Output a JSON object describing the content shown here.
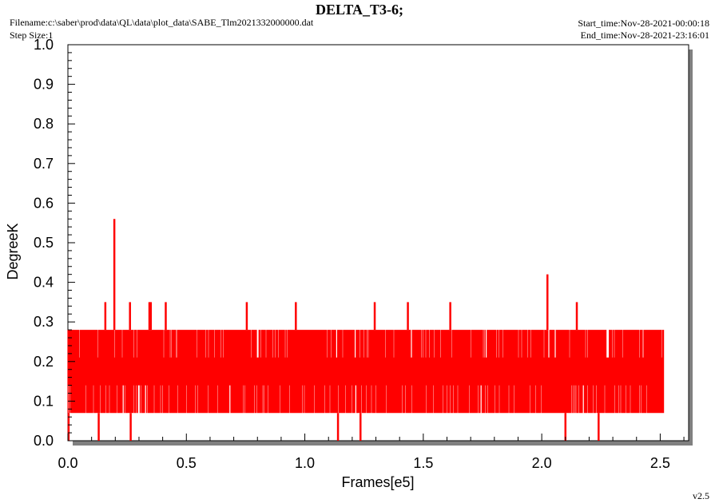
{
  "header": {
    "title": "DELTA_T3-6;",
    "filename": "Filename:c:\\saber\\prod\\data\\QL\\data\\plot_data\\SABE_Tlm2021332000000.dat",
    "step_size": "Step Size:1",
    "start_time": "Start_time:Nov-28-2021-00:00:18",
    "end_time": "End_time:Nov-28-2021-23:16:01",
    "version": "v2.5"
  },
  "colors": {
    "series": "#ff0000",
    "frame_shadow": "#808080",
    "background": "#ffffff"
  },
  "chart_data": {
    "type": "line",
    "title": "DELTA_T3-6;",
    "xlabel": "Frames[e5]",
    "ylabel": "DegreeK",
    "xlim": [
      0,
      2.62
    ],
    "ylim": [
      0,
      1.0
    ],
    "x_ticks": [
      "0.0",
      "0.5",
      "1.0",
      "1.5",
      "2.0",
      "2.5"
    ],
    "y_ticks": [
      "0.0",
      "0.1",
      "0.2",
      "0.3",
      "0.4",
      "0.5",
      "0.6",
      "0.7",
      "0.8",
      "0.9",
      "1.0"
    ],
    "grid": false,
    "series": [
      {
        "color": "#ff0000",
        "x_range": [
          0,
          2.515
        ],
        "band": {
          "typical_min": 0.07,
          "typical_max": 0.28,
          "dominant_levels": [
            0.07,
            0.14,
            0.21,
            0.28
          ]
        },
        "spikes_up": [
          {
            "x": 0.158,
            "y": 0.35
          },
          {
            "x": 0.196,
            "y": 0.56
          },
          {
            "x": 0.262,
            "y": 0.35
          },
          {
            "x": 0.344,
            "y": 0.35
          },
          {
            "x": 0.35,
            "y": 0.35
          },
          {
            "x": 0.413,
            "y": 0.35
          },
          {
            "x": 0.755,
            "y": 0.35
          },
          {
            "x": 0.962,
            "y": 0.35
          },
          {
            "x": 1.295,
            "y": 0.35
          },
          {
            "x": 1.435,
            "y": 0.35
          },
          {
            "x": 1.614,
            "y": 0.35
          },
          {
            "x": 2.024,
            "y": 0.42
          },
          {
            "x": 2.148,
            "y": 0.35
          }
        ],
        "spikes_down": [
          {
            "x": 0.003,
            "y": 0.0
          },
          {
            "x": 0.13,
            "y": 0.0
          },
          {
            "x": 0.265,
            "y": 0.0
          },
          {
            "x": 1.14,
            "y": 0.0
          },
          {
            "x": 1.235,
            "y": 0.0
          },
          {
            "x": 2.1,
            "y": 0.0
          },
          {
            "x": 2.24,
            "y": 0.0
          }
        ]
      }
    ]
  }
}
